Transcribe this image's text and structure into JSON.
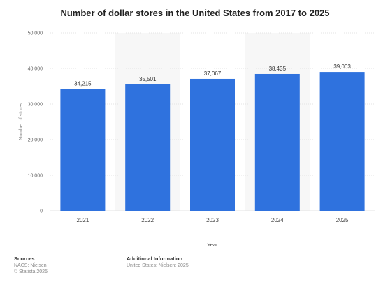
{
  "chart_data": {
    "type": "bar",
    "title": "Number of dollar stores in the United States from 2017 to 2025",
    "xlabel": "Year",
    "ylabel": "Number of stores",
    "categories": [
      "2021",
      "2022",
      "2023",
      "2024",
      "2025"
    ],
    "values": [
      34215,
      35501,
      37067,
      38435,
      39003
    ],
    "value_labels": [
      "34,215",
      "35,501",
      "37,067",
      "38,435",
      "39,003"
    ],
    "ylim": [
      0,
      50000
    ],
    "yticks": [
      0,
      10000,
      20000,
      30000,
      40000,
      50000
    ],
    "ytick_labels": [
      "0",
      "10,000",
      "20,000",
      "30,000",
      "40,000",
      "50,000"
    ],
    "bar_color": "#2f72de",
    "grid": true,
    "legend": "none"
  },
  "footer": {
    "sources_label": "Sources",
    "sources_lines": [
      "NACS; Nielsen",
      "© Statista 2025"
    ],
    "additional_label": "Additional Information:",
    "additional_text": "United States; Nielsen; 2025"
  }
}
